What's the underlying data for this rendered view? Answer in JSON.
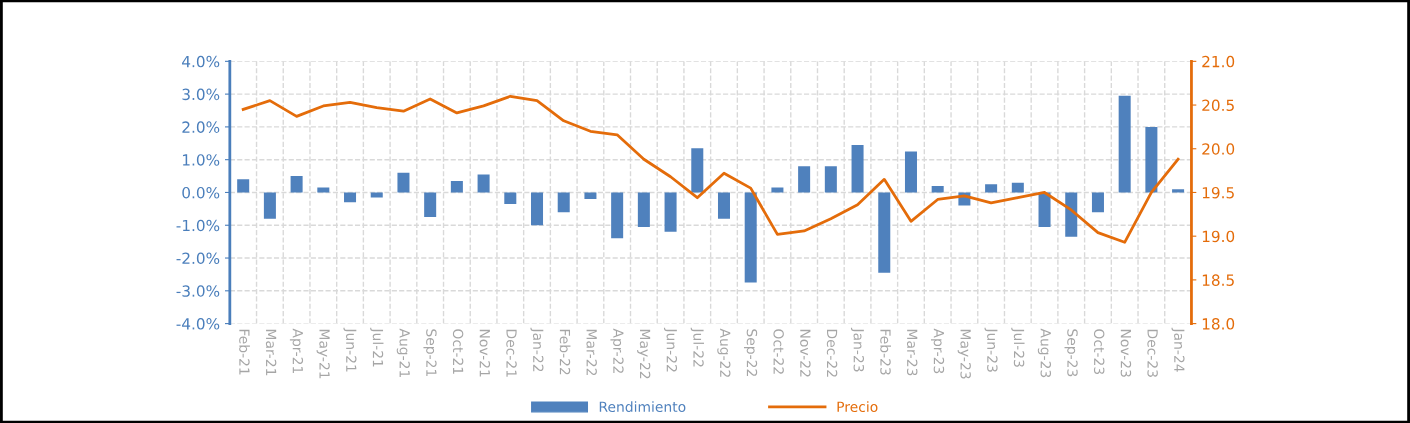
{
  "chart_data": {
    "type": "bar",
    "categories": [
      "Feb-21",
      "Mar-21",
      "Apr-21",
      "May-21",
      "Jun-21",
      "Jul-21",
      "Aug-21",
      "Sep-21",
      "Oct-21",
      "Nov-21",
      "Dec-21",
      "Jan-22",
      "Feb-22",
      "Mar-22",
      "Apr-22",
      "May-22",
      "Jun-22",
      "Jul-22",
      "Aug-22",
      "Sep-22",
      "Oct-22",
      "Nov-22",
      "Dec-22",
      "Jan-23",
      "Feb-23",
      "Mar-23",
      "Apr-23",
      "May-23",
      "Jun-23",
      "Jul-23",
      "Aug-23",
      "Sep-23",
      "Oct-23",
      "Nov-23",
      "Dec-23",
      "Jan-24"
    ],
    "series": [
      {
        "name": "Rendimiento",
        "color": "#4f81bd",
        "values": [
          0.4,
          -0.8,
          0.5,
          0.15,
          -0.3,
          -0.15,
          0.6,
          -0.75,
          0.35,
          0.55,
          -0.35,
          -1.0,
          -0.6,
          -0.2,
          -1.4,
          -1.05,
          -1.2,
          1.35,
          -0.8,
          -2.75,
          0.15,
          0.8,
          0.8,
          1.45,
          -2.45,
          1.25,
          0.2,
          -0.4,
          0.25,
          0.3,
          -1.05,
          -1.35,
          -0.6,
          2.95,
          2.0,
          0.1
        ]
      },
      {
        "name": "Precio",
        "type": "line",
        "axis": "y2",
        "color": "#e46c0a",
        "values": [
          20.45,
          20.55,
          20.37,
          20.49,
          20.53,
          20.47,
          20.43,
          20.57,
          20.41,
          20.49,
          20.6,
          20.55,
          20.32,
          20.2,
          20.16,
          19.88,
          19.68,
          19.44,
          19.72,
          19.55,
          19.02,
          19.06,
          19.2,
          19.36,
          19.65,
          19.17,
          19.42,
          19.46,
          19.38,
          19.44,
          19.5,
          19.3,
          19.04,
          18.93,
          19.5,
          19.88
        ]
      }
    ],
    "ylim": [
      -4,
      4
    ],
    "yticks": [
      {
        "value": -4,
        "label": "-4.0%"
      },
      {
        "value": -3,
        "label": "-3.0%"
      },
      {
        "value": -2,
        "label": "-2.0%"
      },
      {
        "value": -1,
        "label": "-1.0%"
      },
      {
        "value": 0,
        "label": "0.0%"
      },
      {
        "value": 1,
        "label": "1.0%"
      },
      {
        "value": 2,
        "label": "2.0%"
      },
      {
        "value": 3,
        "label": "3.0%"
      },
      {
        "value": 4,
        "label": "4.0%"
      }
    ],
    "y2lim": [
      18,
      21
    ],
    "y2ticks": [
      {
        "value": 18,
        "label": "18.0"
      },
      {
        "value": 18.5,
        "label": "18.5"
      },
      {
        "value": 19,
        "label": "19.0"
      },
      {
        "value": 19.5,
        "label": "19.5"
      },
      {
        "value": 20,
        "label": "20.0"
      },
      {
        "value": 20.5,
        "label": "20.5"
      },
      {
        "value": 21,
        "label": "21.0"
      }
    ],
    "grid": true,
    "legend": "bottom",
    "line_style": "solid",
    "marker": "none"
  }
}
